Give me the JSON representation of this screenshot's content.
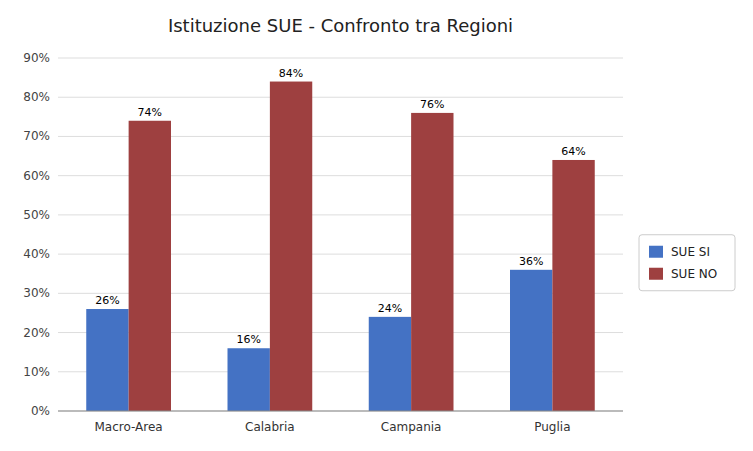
{
  "chart_data": {
    "type": "bar",
    "title": "Istituzione SUE - Confronto tra Regioni",
    "categories": [
      "Macro-Area",
      "Calabria",
      "Campania",
      "Puglia"
    ],
    "series": [
      {
        "name": "SUE SI",
        "color": "#4472C4",
        "values": [
          26,
          16,
          24,
          36
        ],
        "value_labels": [
          "26%",
          "16%",
          "24%",
          "36%"
        ]
      },
      {
        "name": "SUE NO",
        "color": "#9E4040",
        "values": [
          74,
          84,
          76,
          64
        ],
        "value_labels": [
          "74%",
          "84%",
          "76%",
          "64%"
        ]
      }
    ],
    "ylim": [
      0,
      90
    ],
    "yticks": [
      {
        "value": 0,
        "label": "0%"
      },
      {
        "value": 10,
        "label": "10%"
      },
      {
        "value": 20,
        "label": "20%"
      },
      {
        "value": 30,
        "label": "30%"
      },
      {
        "value": 40,
        "label": "40%"
      },
      {
        "value": 50,
        "label": "50%"
      },
      {
        "value": 60,
        "label": "60%"
      },
      {
        "value": 70,
        "label": "70%"
      },
      {
        "value": 80,
        "label": "80%"
      },
      {
        "value": 90,
        "label": "90%"
      }
    ],
    "grid": true,
    "legend": "right",
    "data_labels": true
  }
}
